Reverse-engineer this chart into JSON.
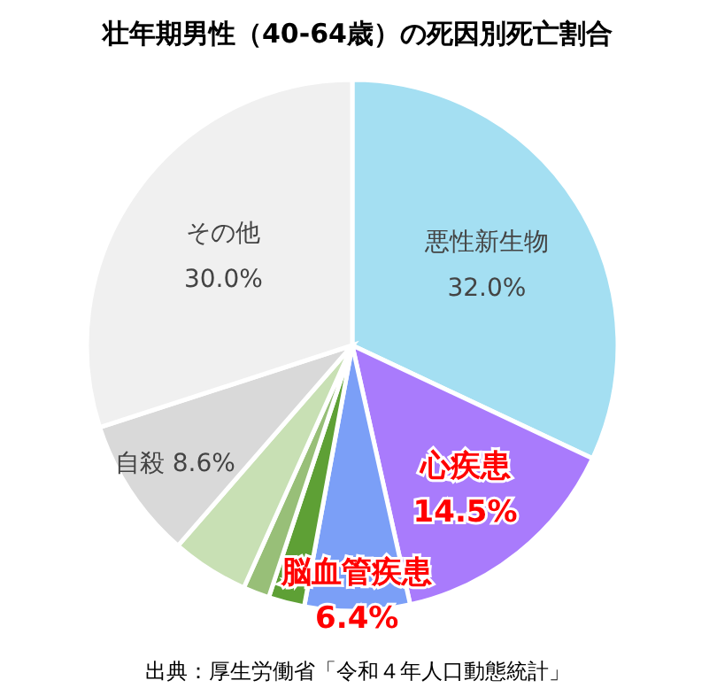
{
  "chart_data": {
    "type": "pie",
    "title": "壮年期男性（40-64歳）の死因別死亡割合",
    "categories": [
      "悪性新生物",
      "心疾患",
      "脳血管疾患",
      null,
      null,
      null,
      "自殺",
      "その他"
    ],
    "values": [
      32.0,
      14.5,
      6.4,
      2.2,
      1.6,
      4.7,
      8.6,
      30.0
    ],
    "colors": [
      "#a4dff2",
      "#a97bfc",
      "#7b9ff7",
      "#5ea035",
      "#98bf78",
      "#c8e0b4",
      "#d9d9d9",
      "#f0f0f0"
    ],
    "value_labels": [
      "32.0%",
      "14.5%",
      "6.4%",
      null,
      null,
      null,
      "8.6%",
      "30.0%"
    ],
    "annotations": [
      "出典：厚生労働省「令和４年人口動態統計」"
    ]
  }
}
